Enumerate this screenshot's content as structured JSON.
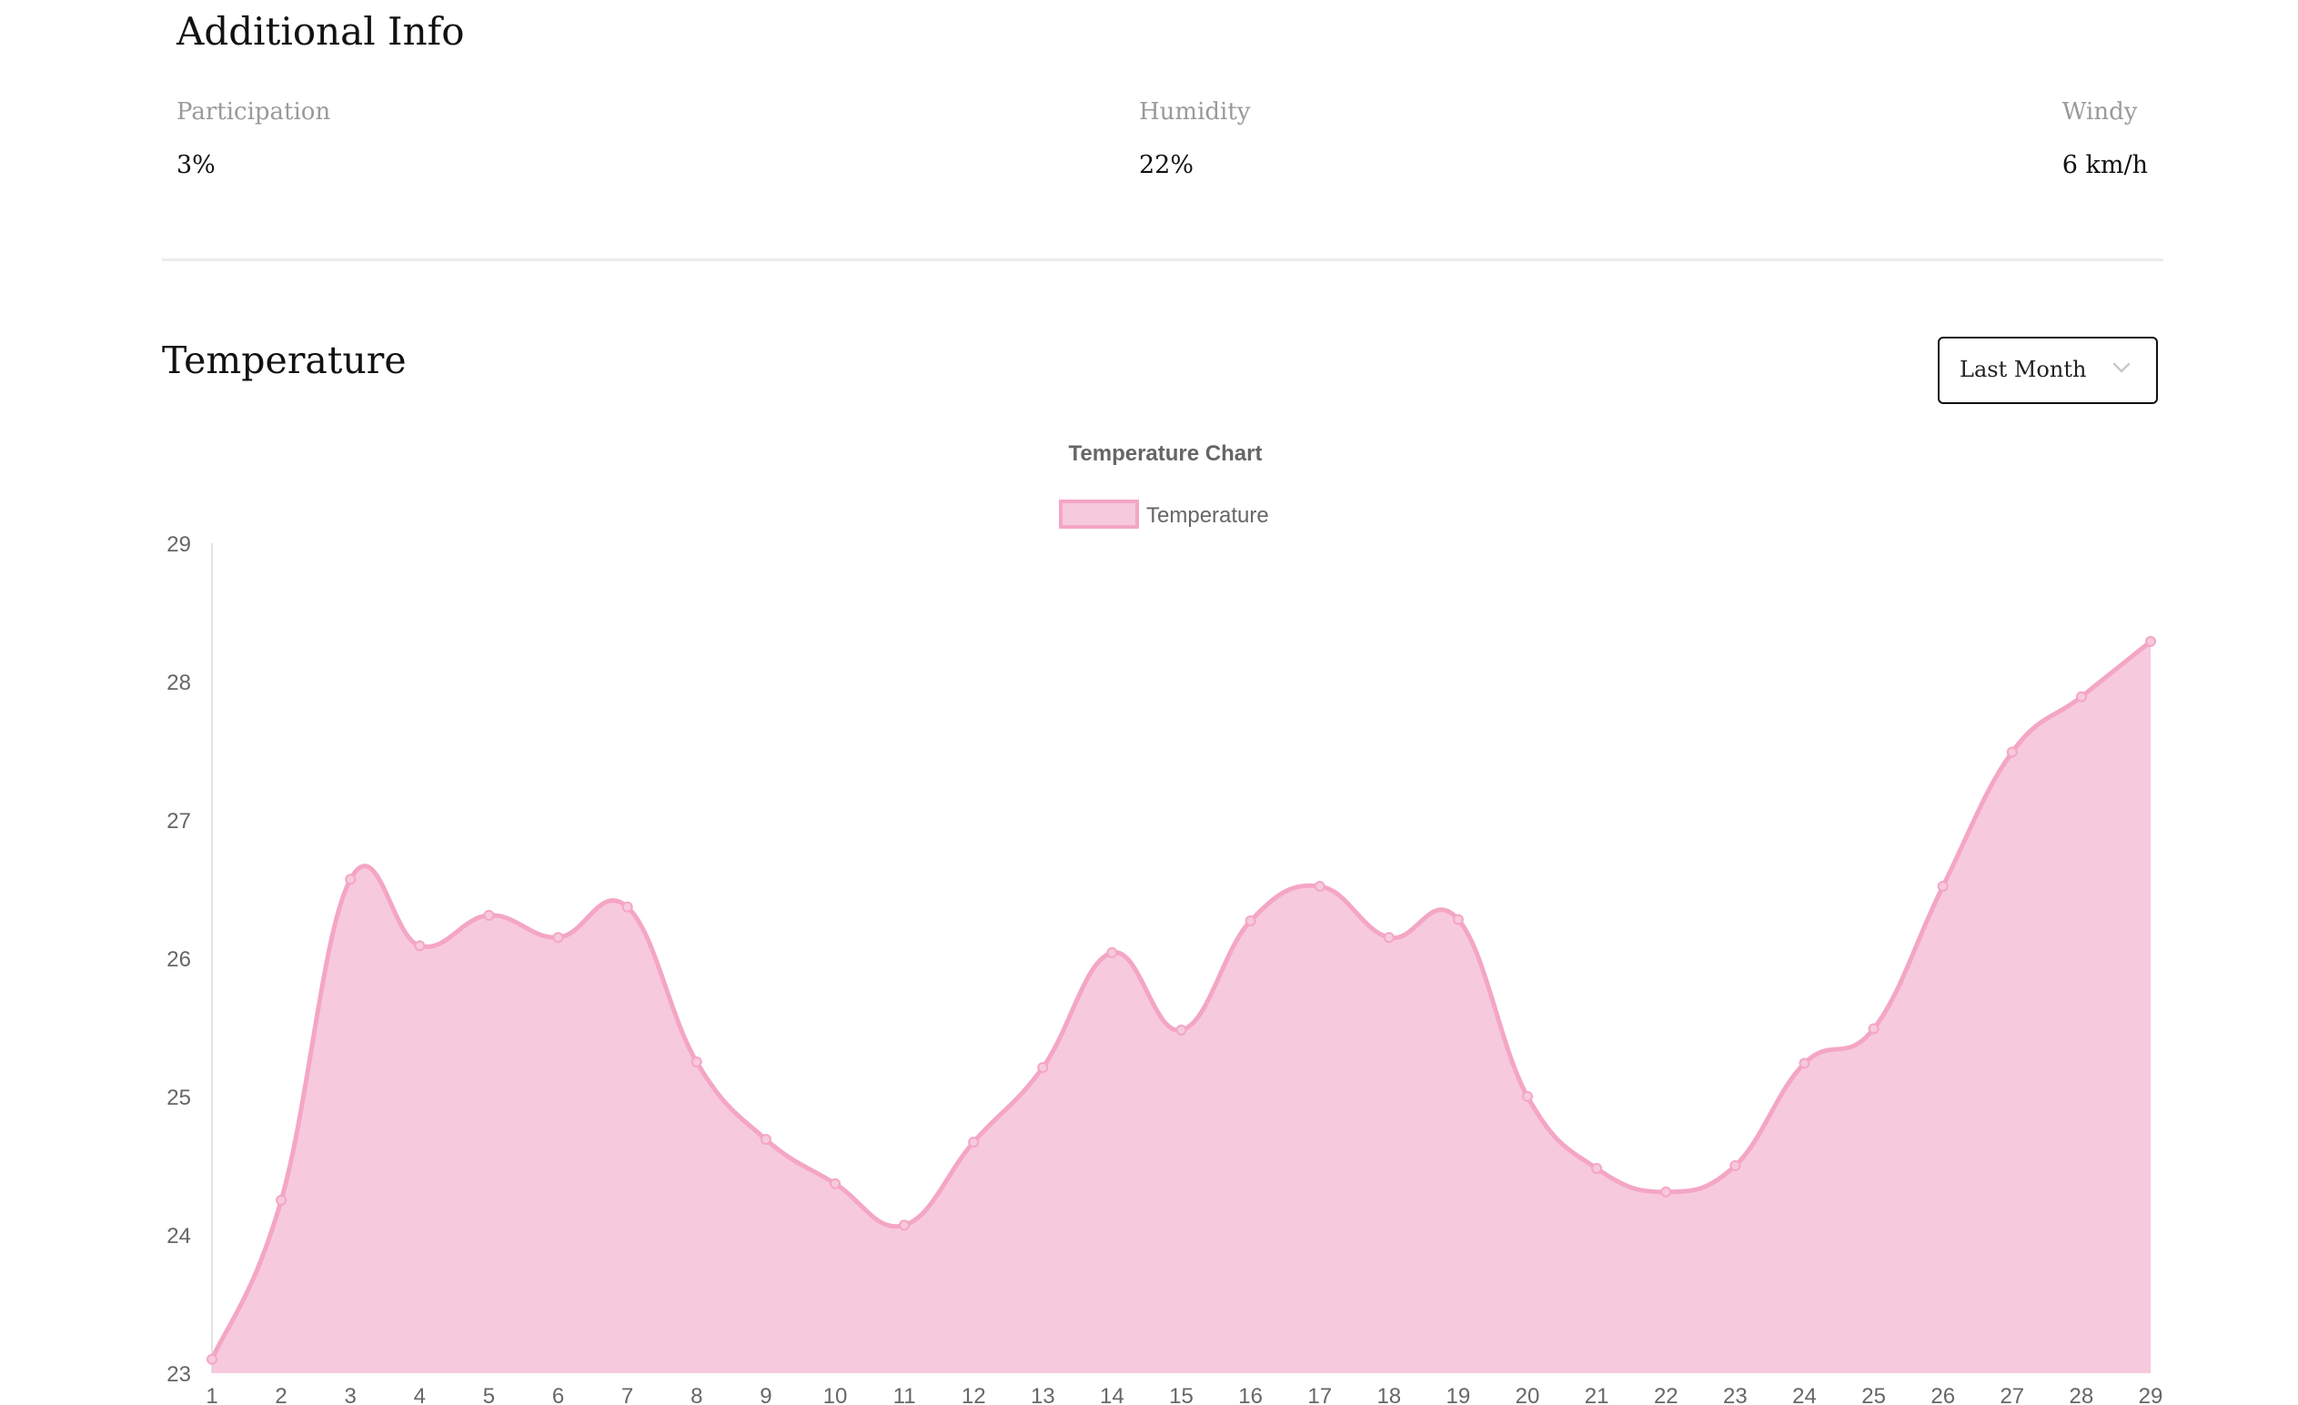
{
  "additional_info": {
    "title": "Additional Info",
    "items": [
      {
        "label": "Participation",
        "value": "3%"
      },
      {
        "label": "Humidity",
        "value": "22%"
      },
      {
        "label": "Windy",
        "value": "6 km/h"
      }
    ]
  },
  "temperature": {
    "title": "Temperature",
    "range_select": {
      "selected": "Last Month",
      "icon": "chevron-down-icon"
    }
  },
  "chart_data": {
    "type": "area",
    "title": "Temperature Chart",
    "xlabel": "",
    "ylabel": "",
    "x": [
      1,
      2,
      3,
      4,
      5,
      6,
      7,
      8,
      9,
      10,
      11,
      12,
      13,
      14,
      15,
      16,
      17,
      18,
      19,
      20,
      21,
      22,
      23,
      24,
      25,
      26,
      27,
      28,
      29
    ],
    "y_ticks": [
      23,
      24,
      25,
      26,
      27,
      28,
      29
    ],
    "ylim": [
      23,
      29
    ],
    "grid": false,
    "legend_position": "top",
    "series": [
      {
        "name": "Temperature",
        "color": "#f4a6c4",
        "fill": "#f7c9dd",
        "values": [
          23.1,
          24.25,
          26.57,
          26.09,
          26.31,
          26.15,
          26.37,
          25.25,
          24.69,
          24.37,
          24.07,
          24.67,
          25.21,
          26.04,
          25.48,
          26.27,
          26.52,
          26.15,
          26.28,
          25.0,
          24.48,
          24.31,
          24.5,
          25.24,
          25.49,
          26.52,
          27.49,
          27.89,
          28.29
        ]
      }
    ]
  }
}
